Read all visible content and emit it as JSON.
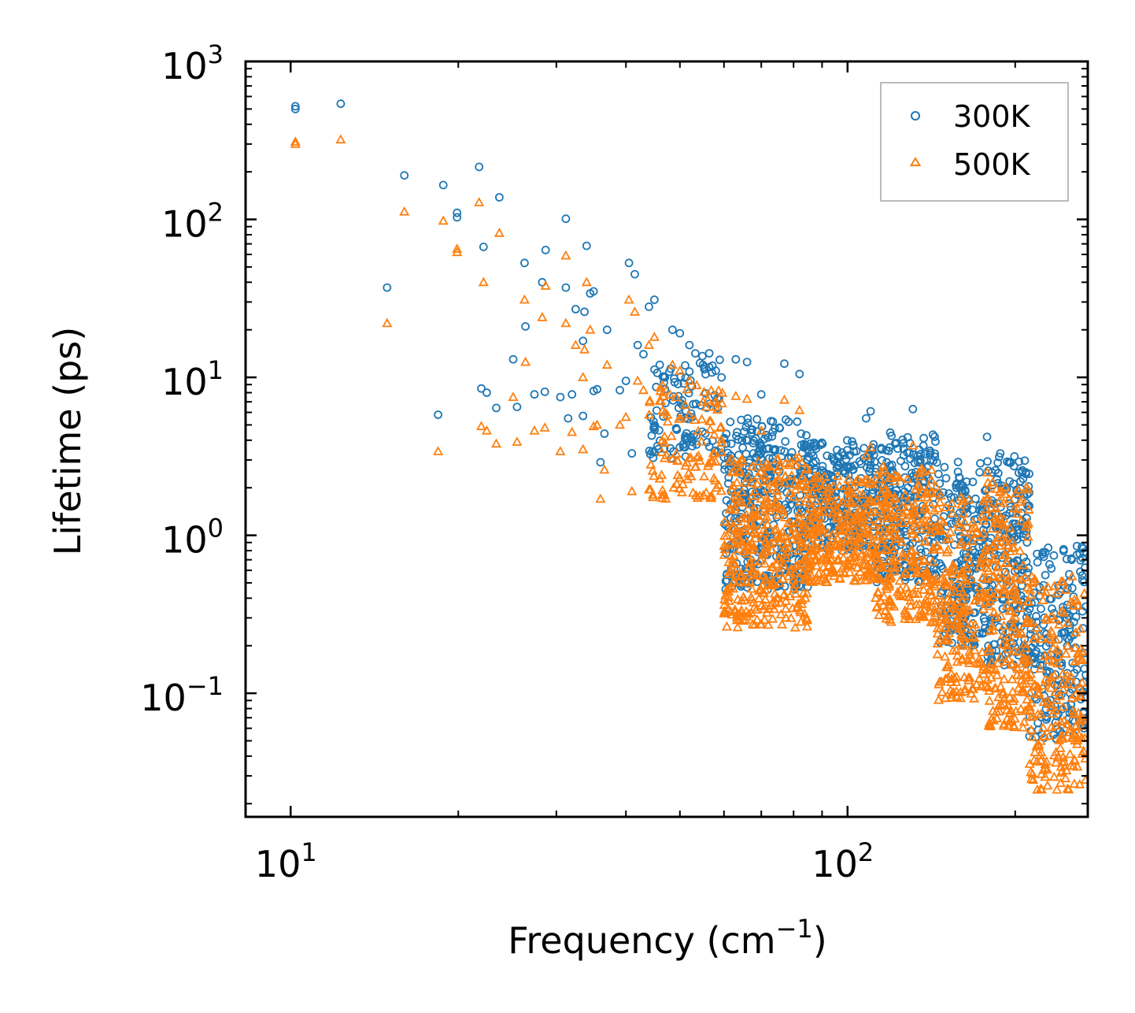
{
  "chart_data": {
    "type": "scatter",
    "title": "",
    "xscale": "log",
    "yscale": "log",
    "xlim": [
      8.3,
      270
    ],
    "ylim": [
      0.0165,
      1000
    ],
    "xlabel": "Frequency (cm",
    "xlabel_exp": "−1",
    "xlabel_close": ")",
    "ylabel": "Lifetime (ps)",
    "x_ticks": [
      {
        "base": "10",
        "exp": "1",
        "value": 10
      },
      {
        "base": "10",
        "exp": "2",
        "value": 100
      }
    ],
    "y_ticks": [
      {
        "base": "10",
        "exp": "3",
        "value": 1000
      },
      {
        "base": "10",
        "exp": "2",
        "value": 100
      },
      {
        "base": "10",
        "exp": "1",
        "value": 10
      },
      {
        "base": "10",
        "exp": "0",
        "value": 1
      },
      {
        "base": "10",
        "exp": "−1",
        "value": 0.1
      }
    ],
    "legend": {
      "position": "top-right"
    },
    "series": [
      {
        "name": "300K",
        "marker": "circle",
        "color": "#1f77b4",
        "points": [
          [
            10.2,
            520
          ],
          [
            10.2,
            500
          ],
          [
            12.3,
            540
          ],
          [
            14.9,
            37
          ],
          [
            16.0,
            190
          ],
          [
            18.4,
            5.8
          ],
          [
            18.8,
            165
          ],
          [
            19.9,
            110
          ],
          [
            19.9,
            103
          ],
          [
            21.8,
            215
          ],
          [
            22.0,
            8.5
          ],
          [
            22.2,
            67
          ],
          [
            22.5,
            8.0
          ],
          [
            23.4,
            6.4
          ],
          [
            23.7,
            138
          ],
          [
            25.1,
            13
          ],
          [
            25.5,
            6.5
          ],
          [
            26.3,
            53
          ],
          [
            26.4,
            21
          ],
          [
            27.4,
            7.8
          ],
          [
            28.3,
            40
          ],
          [
            28.6,
            8.1
          ],
          [
            28.7,
            64
          ],
          [
            30.5,
            7.5
          ],
          [
            31.2,
            37
          ],
          [
            31.2,
            101
          ],
          [
            31.5,
            5.5
          ],
          [
            32.0,
            7.8
          ],
          [
            32.5,
            27
          ],
          [
            33.5,
            5.7
          ],
          [
            33.5,
            17
          ],
          [
            33.7,
            26
          ],
          [
            34.0,
            68
          ],
          [
            34.5,
            34
          ],
          [
            35.0,
            8.2
          ],
          [
            35.0,
            35
          ],
          [
            35.5,
            8.4
          ],
          [
            36.0,
            2.9
          ],
          [
            36.6,
            4.4
          ],
          [
            37.0,
            20
          ],
          [
            39.0,
            8.3
          ],
          [
            40.0,
            9.5
          ],
          [
            40.5,
            53
          ],
          [
            41.0,
            3.3
          ],
          [
            41.5,
            45
          ],
          [
            42.0,
            16
          ],
          [
            43.0,
            14
          ],
          [
            44.0,
            28
          ],
          [
            45.0,
            31
          ],
          [
            46.0,
            12
          ],
          [
            47.0,
            10
          ],
          [
            48.5,
            20
          ],
          [
            50.0,
            19
          ],
          [
            52.0,
            16
          ],
          [
            55.0,
            12
          ],
          [
            58.0,
            11
          ],
          [
            63.0,
            13
          ],
          [
            66.0,
            12.5
          ],
          [
            70.0,
            7.8
          ],
          [
            77.0,
            12.2
          ],
          [
            82.0,
            10.5
          ],
          [
            108.0,
            5.5
          ],
          [
            110.0,
            6.1
          ],
          [
            115.0,
            3.5
          ],
          [
            131.0,
            6.3
          ],
          [
            178.0,
            4.2
          ],
          [
            188.0,
            3.3
          ],
          [
            195.0,
            2.9
          ],
          [
            262.0,
            0.105
          ],
          [
            265.0,
            0.117
          ]
        ],
        "clusters": [
          {
            "x": [
              44,
              60
            ],
            "y": [
              3.0,
              15
            ],
            "n": 110
          },
          {
            "x": [
              60,
              85
            ],
            "y": [
              0.45,
              5.5
            ],
            "n": 380
          },
          {
            "x": [
              85,
              112
            ],
            "y": [
              0.8,
              4.0
            ],
            "n": 260
          },
          {
            "x": [
              112,
              145
            ],
            "y": [
              0.5,
              4.5
            ],
            "n": 260
          },
          {
            "x": [
              145,
              178
            ],
            "y": [
              0.2,
              3.0
            ],
            "n": 220
          },
          {
            "x": [
              178,
              212
            ],
            "y": [
              0.15,
              3.3
            ],
            "n": 220
          },
          {
            "x": [
              212,
              268
            ],
            "y": [
              0.05,
              0.9
            ],
            "n": 200
          }
        ]
      },
      {
        "name": "500K",
        "marker": "triangle",
        "color": "#ff7f0e",
        "points": [
          [
            10.2,
            310
          ],
          [
            10.2,
            300
          ],
          [
            12.3,
            320
          ],
          [
            14.9,
            22
          ],
          [
            16.0,
            112
          ],
          [
            18.4,
            3.4
          ],
          [
            18.8,
            98
          ],
          [
            19.9,
            65
          ],
          [
            19.9,
            62
          ],
          [
            21.8,
            128
          ],
          [
            22.0,
            4.9
          ],
          [
            22.2,
            40
          ],
          [
            22.5,
            4.6
          ],
          [
            23.4,
            3.8
          ],
          [
            23.7,
            82
          ],
          [
            25.1,
            7.5
          ],
          [
            25.5,
            3.9
          ],
          [
            26.3,
            31
          ],
          [
            26.4,
            12.5
          ],
          [
            27.4,
            4.6
          ],
          [
            28.3,
            24
          ],
          [
            28.6,
            4.8
          ],
          [
            28.7,
            38
          ],
          [
            30.5,
            3.4
          ],
          [
            31.2,
            22
          ],
          [
            31.2,
            59
          ],
          [
            32.0,
            4.5
          ],
          [
            32.5,
            16
          ],
          [
            33.5,
            3.5
          ],
          [
            33.5,
            10
          ],
          [
            33.7,
            15
          ],
          [
            34.0,
            40
          ],
          [
            34.5,
            20
          ],
          [
            35.0,
            4.9
          ],
          [
            35.5,
            5.0
          ],
          [
            36.0,
            1.7
          ],
          [
            36.6,
            2.6
          ],
          [
            37.0,
            12
          ],
          [
            39.0,
            5.0
          ],
          [
            40.0,
            5.6
          ],
          [
            40.5,
            31
          ],
          [
            41.0,
            1.9
          ],
          [
            41.5,
            26
          ],
          [
            42.0,
            9.5
          ],
          [
            43.0,
            8.3
          ],
          [
            44.0,
            16
          ],
          [
            45.0,
            18
          ],
          [
            46.0,
            7.1
          ],
          [
            47.0,
            6.0
          ],
          [
            48.5,
            12
          ],
          [
            50.0,
            11
          ],
          [
            52.0,
            9.5
          ],
          [
            55.0,
            7.0
          ],
          [
            58.0,
            6.5
          ],
          [
            63.0,
            7.6
          ],
          [
            66.0,
            7.3
          ],
          [
            70.0,
            4.6
          ],
          [
            77.0,
            7.2
          ],
          [
            82.0,
            6.2
          ],
          [
            108.0,
            3.2
          ],
          [
            110.0,
            3.6
          ],
          [
            131.0,
            3.7
          ],
          [
            178.0,
            2.5
          ],
          [
            188.0,
            1.9
          ],
          [
            195.0,
            1.7
          ],
          [
            262.0,
            0.062
          ],
          [
            265.0,
            0.069
          ]
        ],
        "clusters": [
          {
            "x": [
              44,
              60
            ],
            "y": [
              1.7,
              9.0
            ],
            "n": 110
          },
          {
            "x": [
              60,
              85
            ],
            "y": [
              0.26,
              3.2
            ],
            "n": 380
          },
          {
            "x": [
              85,
              112
            ],
            "y": [
              0.5,
              2.4
            ],
            "n": 260
          },
          {
            "x": [
              112,
              145
            ],
            "y": [
              0.28,
              2.8
            ],
            "n": 260
          },
          {
            "x": [
              145,
              178
            ],
            "y": [
              0.09,
              1.8
            ],
            "n": 220
          },
          {
            "x": [
              178,
              212
            ],
            "y": [
              0.06,
              2.2
            ],
            "n": 220
          },
          {
            "x": [
              212,
              268
            ],
            "y": [
              0.024,
              0.55
            ],
            "n": 200
          }
        ]
      }
    ]
  }
}
